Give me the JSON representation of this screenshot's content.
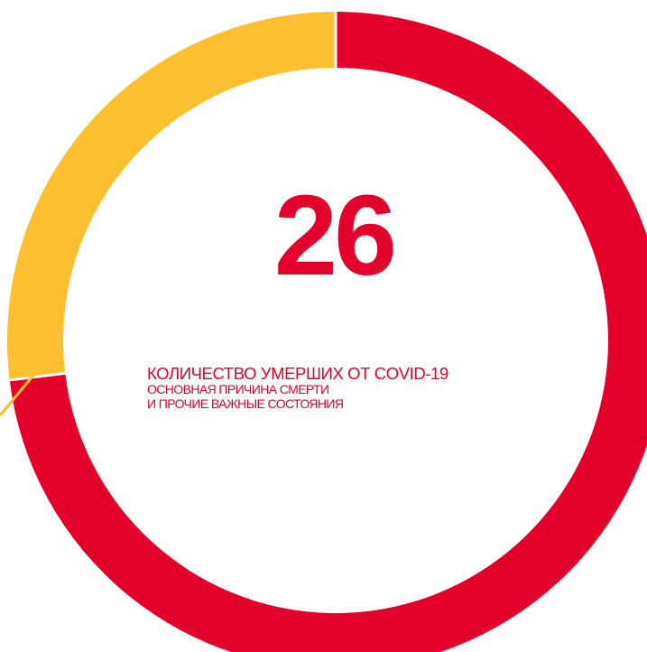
{
  "center": {
    "value": "26",
    "caption_line1": "КОЛИЧЕСТВО УМЕРШИХ ОТ COVID-19",
    "caption_line2": "ОСНОВНАЯ ПРИЧИНА СМЕРТИ",
    "caption_line3": "И ПРОЧИЕ ВАЖНЫЕ СОСТОЯНИЯ"
  },
  "chart_data": {
    "type": "pie",
    "donut": true,
    "total": 26,
    "slices": [
      {
        "value": 19,
        "color": "#e3002b"
      },
      {
        "value": 7,
        "color": "#fbbf2f"
      }
    ],
    "leader_line_color": "#fbbf2f",
    "separator_color": "#ffffff"
  }
}
